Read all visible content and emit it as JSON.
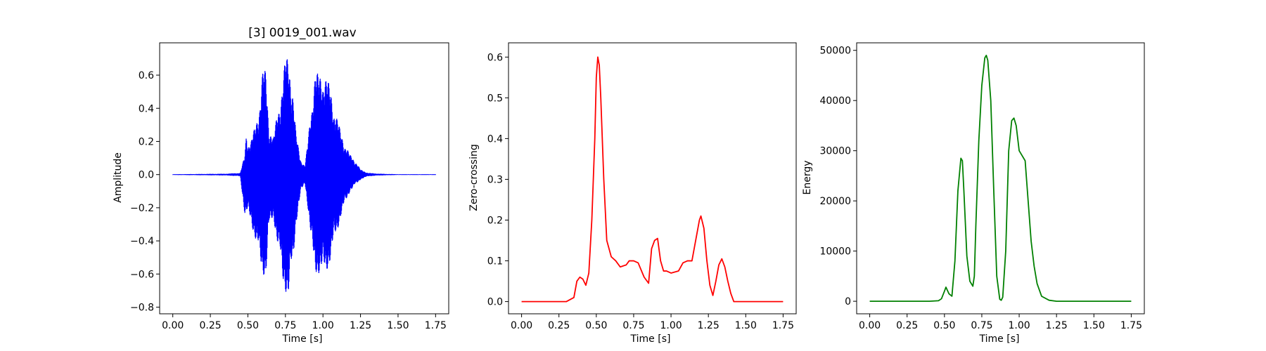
{
  "figure": {
    "background": "#ffffff"
  },
  "chart_data": [
    {
      "type": "line",
      "title": "[3] 0019_001.wav",
      "xlabel": "Time [s]",
      "ylabel": "Amplitude",
      "color": "#0000ff",
      "xlim": [
        -0.0875,
        1.8375
      ],
      "ylim": [
        -0.84,
        0.795
      ],
      "xticks": [
        0.0,
        0.25,
        0.5,
        0.75,
        1.0,
        1.25,
        1.5,
        1.75
      ],
      "xtick_labels": [
        "0.00",
        "0.25",
        "0.50",
        "0.75",
        "1.00",
        "1.25",
        "1.50",
        "1.75"
      ],
      "yticks": [
        -0.8,
        -0.6,
        -0.4,
        -0.2,
        0.0,
        0.2,
        0.4,
        0.6
      ],
      "ytick_labels": [
        "−0.8",
        "−0.6",
        "−0.4",
        "−0.2",
        "0.0",
        "0.2",
        "0.4",
        "0.6"
      ],
      "grid": false,
      "envelope": {
        "x": [
          0.0,
          0.35,
          0.45,
          0.48,
          0.49,
          0.5,
          0.52,
          0.55,
          0.58,
          0.6,
          0.62,
          0.64,
          0.67,
          0.7,
          0.73,
          0.75,
          0.77,
          0.78,
          0.8,
          0.82,
          0.85,
          0.88,
          0.9,
          0.93,
          0.95,
          0.97,
          1.0,
          1.02,
          1.05,
          1.08,
          1.12,
          1.18,
          1.22,
          1.25,
          1.3,
          1.38,
          1.5,
          1.75
        ],
        "upper": [
          0.002,
          0.005,
          0.01,
          0.12,
          0.27,
          0.2,
          0.2,
          0.3,
          0.45,
          0.64,
          0.63,
          0.3,
          0.22,
          0.4,
          0.55,
          0.71,
          0.72,
          0.68,
          0.5,
          0.25,
          0.1,
          0.05,
          0.2,
          0.5,
          0.63,
          0.6,
          0.64,
          0.6,
          0.52,
          0.4,
          0.25,
          0.12,
          0.08,
          0.03,
          0.01,
          0.005,
          0.002,
          0.002
        ],
        "lower": [
          -0.002,
          -0.005,
          -0.01,
          -0.25,
          -0.26,
          -0.24,
          -0.28,
          -0.4,
          -0.55,
          -0.6,
          -0.62,
          -0.35,
          -0.25,
          -0.45,
          -0.65,
          -0.7,
          -0.76,
          -0.7,
          -0.55,
          -0.3,
          -0.12,
          -0.05,
          -0.2,
          -0.5,
          -0.6,
          -0.6,
          -0.63,
          -0.6,
          -0.52,
          -0.4,
          -0.25,
          -0.1,
          -0.06,
          -0.03,
          -0.01,
          -0.005,
          -0.002,
          -0.002
        ]
      }
    },
    {
      "type": "line",
      "title": "",
      "xlabel": "Time [s]",
      "ylabel": "Zero-crossing",
      "color": "#ff0000",
      "xlim": [
        -0.0875,
        1.8375
      ],
      "ylim": [
        -0.03,
        0.635
      ],
      "xticks": [
        0.0,
        0.25,
        0.5,
        0.75,
        1.0,
        1.25,
        1.5,
        1.75
      ],
      "xtick_labels": [
        "0.00",
        "0.25",
        "0.50",
        "0.75",
        "1.00",
        "1.25",
        "1.50",
        "1.75"
      ],
      "yticks": [
        0.0,
        0.1,
        0.2,
        0.3,
        0.4,
        0.5,
        0.6
      ],
      "ytick_labels": [
        "0.0",
        "0.1",
        "0.2",
        "0.3",
        "0.4",
        "0.5",
        "0.6"
      ],
      "grid": false,
      "x": [
        0.0,
        0.1,
        0.2,
        0.3,
        0.35,
        0.37,
        0.39,
        0.41,
        0.43,
        0.45,
        0.47,
        0.49,
        0.5,
        0.51,
        0.52,
        0.53,
        0.55,
        0.57,
        0.6,
        0.63,
        0.66,
        0.7,
        0.72,
        0.75,
        0.78,
        0.82,
        0.85,
        0.87,
        0.89,
        0.91,
        0.93,
        0.95,
        0.97,
        1.0,
        1.05,
        1.08,
        1.11,
        1.14,
        1.17,
        1.19,
        1.2,
        1.22,
        1.24,
        1.26,
        1.28,
        1.3,
        1.32,
        1.34,
        1.36,
        1.38,
        1.4,
        1.42,
        1.5,
        1.6,
        1.75
      ],
      "y": [
        0.0,
        0.0,
        0.0,
        0.0,
        0.01,
        0.05,
        0.06,
        0.055,
        0.04,
        0.07,
        0.2,
        0.4,
        0.55,
        0.6,
        0.58,
        0.5,
        0.3,
        0.15,
        0.11,
        0.1,
        0.085,
        0.09,
        0.1,
        0.1,
        0.095,
        0.06,
        0.045,
        0.13,
        0.15,
        0.155,
        0.1,
        0.075,
        0.075,
        0.07,
        0.075,
        0.095,
        0.1,
        0.1,
        0.16,
        0.2,
        0.21,
        0.18,
        0.1,
        0.04,
        0.015,
        0.05,
        0.09,
        0.105,
        0.085,
        0.05,
        0.02,
        0.0,
        0.0,
        0.0,
        0.0
      ]
    },
    {
      "type": "line",
      "title": "",
      "xlabel": "Time [s]",
      "ylabel": "Energy",
      "color": "#008000",
      "xlim": [
        -0.0875,
        1.8375
      ],
      "ylim": [
        -2500,
        51500
      ],
      "xticks": [
        0.0,
        0.25,
        0.5,
        0.75,
        1.0,
        1.25,
        1.5,
        1.75
      ],
      "xtick_labels": [
        "0.00",
        "0.25",
        "0.50",
        "0.75",
        "1.00",
        "1.25",
        "1.50",
        "1.75"
      ],
      "yticks": [
        0,
        10000,
        20000,
        30000,
        40000,
        50000
      ],
      "ytick_labels": [
        "0",
        "10000",
        "20000",
        "30000",
        "40000",
        "50000"
      ],
      "grid": false,
      "x": [
        0.0,
        0.2,
        0.4,
        0.46,
        0.48,
        0.5,
        0.51,
        0.53,
        0.55,
        0.57,
        0.59,
        0.61,
        0.62,
        0.63,
        0.65,
        0.67,
        0.69,
        0.7,
        0.71,
        0.73,
        0.75,
        0.77,
        0.78,
        0.79,
        0.81,
        0.83,
        0.85,
        0.87,
        0.88,
        0.89,
        0.91,
        0.93,
        0.95,
        0.965,
        0.98,
        1.0,
        1.02,
        1.04,
        1.06,
        1.08,
        1.1,
        1.12,
        1.15,
        1.2,
        1.25,
        1.5,
        1.75
      ],
      "y": [
        0,
        0,
        0,
        100,
        500,
        2000,
        2800,
        1500,
        1000,
        8000,
        22000,
        28500,
        28000,
        22000,
        9000,
        4000,
        3000,
        5000,
        15000,
        32000,
        43000,
        48500,
        49000,
        48000,
        40000,
        22000,
        5000,
        400,
        200,
        800,
        10000,
        30000,
        36000,
        36500,
        35000,
        30000,
        29000,
        28000,
        20000,
        12000,
        7000,
        3500,
        1000,
        200,
        0,
        0,
        0
      ]
    }
  ]
}
